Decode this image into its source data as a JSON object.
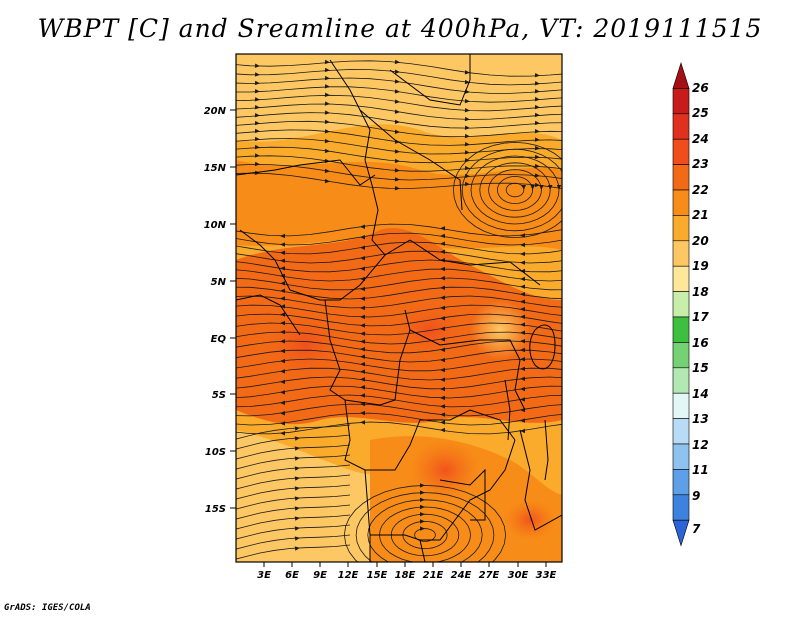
{
  "title": "WBPT [C] and Sreamline at 400hPa, VT: 2019111515",
  "credit": "GrADS: IGES/COLA",
  "latitude_labels": [
    "20N",
    "15N",
    "10N",
    "5N",
    "EQ",
    "5S",
    "10S",
    "15S"
  ],
  "longitude_labels": [
    "3E",
    "6E",
    "9E",
    "12E",
    "15E",
    "18E",
    "21E",
    "24E",
    "27E",
    "30E",
    "33E"
  ],
  "colorbar": {
    "labels": [
      "26",
      "25",
      "24",
      "23",
      "22",
      "21",
      "20",
      "19",
      "18",
      "17",
      "16",
      "15",
      "14",
      "13",
      "12",
      "11",
      "9",
      "7"
    ],
    "colors": [
      "#a50f15",
      "#c81c1c",
      "#e0301e",
      "#f04d1d",
      "#f26a15",
      "#f88c18",
      "#fbab2b",
      "#fdc863",
      "#fde89a",
      "#c8efaa",
      "#3fbf3f",
      "#74d274",
      "#b2e8b2",
      "#e4f7f7",
      "#b8dcf6",
      "#8ec3f0",
      "#5ea0e8",
      "#3d82df",
      "#2a64d6"
    ]
  },
  "map": {
    "fill_colors": {
      "warm": "#fbab2b",
      "light": "#fdc863",
      "orange": "#f88c18",
      "deep": "#f26a15",
      "hot": "#f04d1d"
    },
    "streamline_color": "#1a1a1a",
    "border_color": "#000000"
  }
}
